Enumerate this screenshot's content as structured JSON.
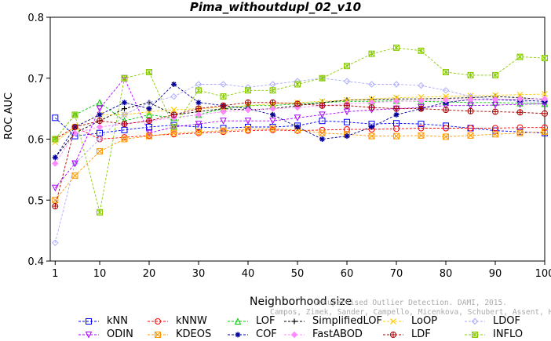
{
  "chart_data": {
    "type": "line",
    "title": "Pima_withoutdupl_02_v10",
    "xlabel": "Neighborhood size",
    "ylabel": "ROC AUC",
    "xlim": [
      0,
      100
    ],
    "ylim": [
      0.4,
      0.8
    ],
    "xticks": [
      1,
      10,
      20,
      30,
      40,
      50,
      60,
      70,
      80,
      90,
      100
    ],
    "yticks": [
      0.4,
      0.5,
      0.6,
      0.7,
      0.8
    ],
    "x": [
      1,
      5,
      10,
      15,
      20,
      25,
      30,
      35,
      40,
      45,
      50,
      55,
      60,
      65,
      70,
      75,
      80,
      85,
      90,
      95,
      100
    ],
    "legend_position": "bottom",
    "credit": [
      "Unsupervised Outlier Detection. DAMI, 2015.",
      "Campos, Zimek, Sander, Campello, Micenkova, Schubert, Assent, Houle"
    ],
    "series": [
      {
        "name": "kNN",
        "color": "#0000ff",
        "marker": "square",
        "values": [
          0.635,
          0.605,
          0.61,
          0.615,
          0.62,
          0.623,
          0.62,
          0.618,
          0.62,
          0.62,
          0.622,
          0.63,
          0.628,
          0.625,
          0.626,
          0.625,
          0.622,
          0.618,
          0.614,
          0.612,
          0.61
        ]
      },
      {
        "name": "kNNW",
        "color": "#ff0000",
        "marker": "circle",
        "values": [
          0.6,
          0.62,
          0.6,
          0.603,
          0.606,
          0.608,
          0.61,
          0.612,
          0.614,
          0.615,
          0.614,
          0.615,
          0.616,
          0.616,
          0.617,
          0.618,
          0.618,
          0.618,
          0.618,
          0.619,
          0.619
        ]
      },
      {
        "name": "LOF",
        "color": "#00cc00",
        "marker": "triangle-up",
        "values": [
          0.6,
          0.64,
          0.66,
          0.63,
          0.64,
          0.635,
          0.64,
          0.65,
          0.655,
          0.655,
          0.658,
          0.66,
          0.662,
          0.662,
          0.663,
          0.662,
          0.661,
          0.66,
          0.66,
          0.659,
          0.658
        ]
      },
      {
        "name": "SimplifiedLOF",
        "color": "#000000",
        "marker": "plus",
        "values": [
          0.57,
          0.61,
          0.63,
          0.65,
          0.66,
          0.64,
          0.645,
          0.65,
          0.648,
          0.65,
          0.655,
          0.66,
          0.664,
          0.665,
          0.666,
          0.666,
          0.667,
          0.668,
          0.67,
          0.668,
          0.665
        ]
      },
      {
        "name": "LoOP",
        "color": "#ffcc00",
        "marker": "cross",
        "values": [
          0.595,
          0.62,
          0.64,
          0.64,
          0.645,
          0.648,
          0.65,
          0.652,
          0.655,
          0.658,
          0.66,
          0.662,
          0.664,
          0.666,
          0.668,
          0.669,
          0.67,
          0.671,
          0.672,
          0.673,
          0.674
        ]
      },
      {
        "name": "LDOF",
        "color": "#aaaaff",
        "marker": "diamond",
        "values": [
          0.43,
          0.56,
          0.6,
          0.64,
          0.66,
          0.67,
          0.69,
          0.69,
          0.685,
          0.69,
          0.695,
          0.7,
          0.695,
          0.69,
          0.69,
          0.688,
          0.68,
          0.67,
          0.665,
          0.662,
          0.66
        ]
      },
      {
        "name": "ODIN",
        "color": "#aa00ff",
        "marker": "triangle-down",
        "values": [
          0.52,
          0.56,
          0.65,
          0.7,
          0.61,
          0.62,
          0.625,
          0.63,
          0.63,
          0.63,
          0.635,
          0.64,
          0.645,
          0.648,
          0.65,
          0.652,
          0.655,
          0.655,
          0.656,
          0.657,
          0.658
        ]
      },
      {
        "name": "KDEOS",
        "color": "#ff9900",
        "marker": "square-x",
        "values": [
          0.5,
          0.54,
          0.58,
          0.6,
          0.605,
          0.61,
          0.612,
          0.614,
          0.616,
          0.617,
          0.615,
          0.61,
          0.608,
          0.605,
          0.605,
          0.606,
          0.604,
          0.606,
          0.608,
          0.61,
          0.612
        ]
      },
      {
        "name": "COF",
        "color": "#000099",
        "marker": "asterisk",
        "values": [
          0.57,
          0.62,
          0.64,
          0.66,
          0.65,
          0.69,
          0.66,
          0.655,
          0.65,
          0.64,
          0.62,
          0.6,
          0.605,
          0.62,
          0.64,
          0.65,
          0.66,
          0.665,
          0.665,
          0.664,
          0.662
        ]
      },
      {
        "name": "FastABOD",
        "color": "#ff88ff",
        "marker": "diamond-filled",
        "values": [
          0.56,
          0.61,
          0.62,
          0.625,
          0.63,
          0.635,
          0.64,
          0.645,
          0.648,
          0.65,
          0.652,
          0.655,
          0.658,
          0.66,
          0.662,
          0.663,
          0.664,
          0.665,
          0.665,
          0.666,
          0.666
        ]
      },
      {
        "name": "LDF",
        "color": "#aa0000",
        "marker": "circle-plus",
        "values": [
          0.49,
          0.62,
          0.63,
          0.625,
          0.63,
          0.64,
          0.65,
          0.655,
          0.66,
          0.66,
          0.658,
          0.655,
          0.655,
          0.652,
          0.65,
          0.65,
          0.648,
          0.646,
          0.645,
          0.644,
          0.642
        ]
      },
      {
        "name": "INFLO",
        "color": "#88cc00",
        "marker": "star-box",
        "values": [
          0.6,
          0.64,
          0.48,
          0.7,
          0.71,
          0.62,
          0.68,
          0.67,
          0.68,
          0.68,
          0.69,
          0.7,
          0.72,
          0.74,
          0.75,
          0.745,
          0.71,
          0.705,
          0.705,
          0.735,
          0.733
        ]
      }
    ]
  }
}
